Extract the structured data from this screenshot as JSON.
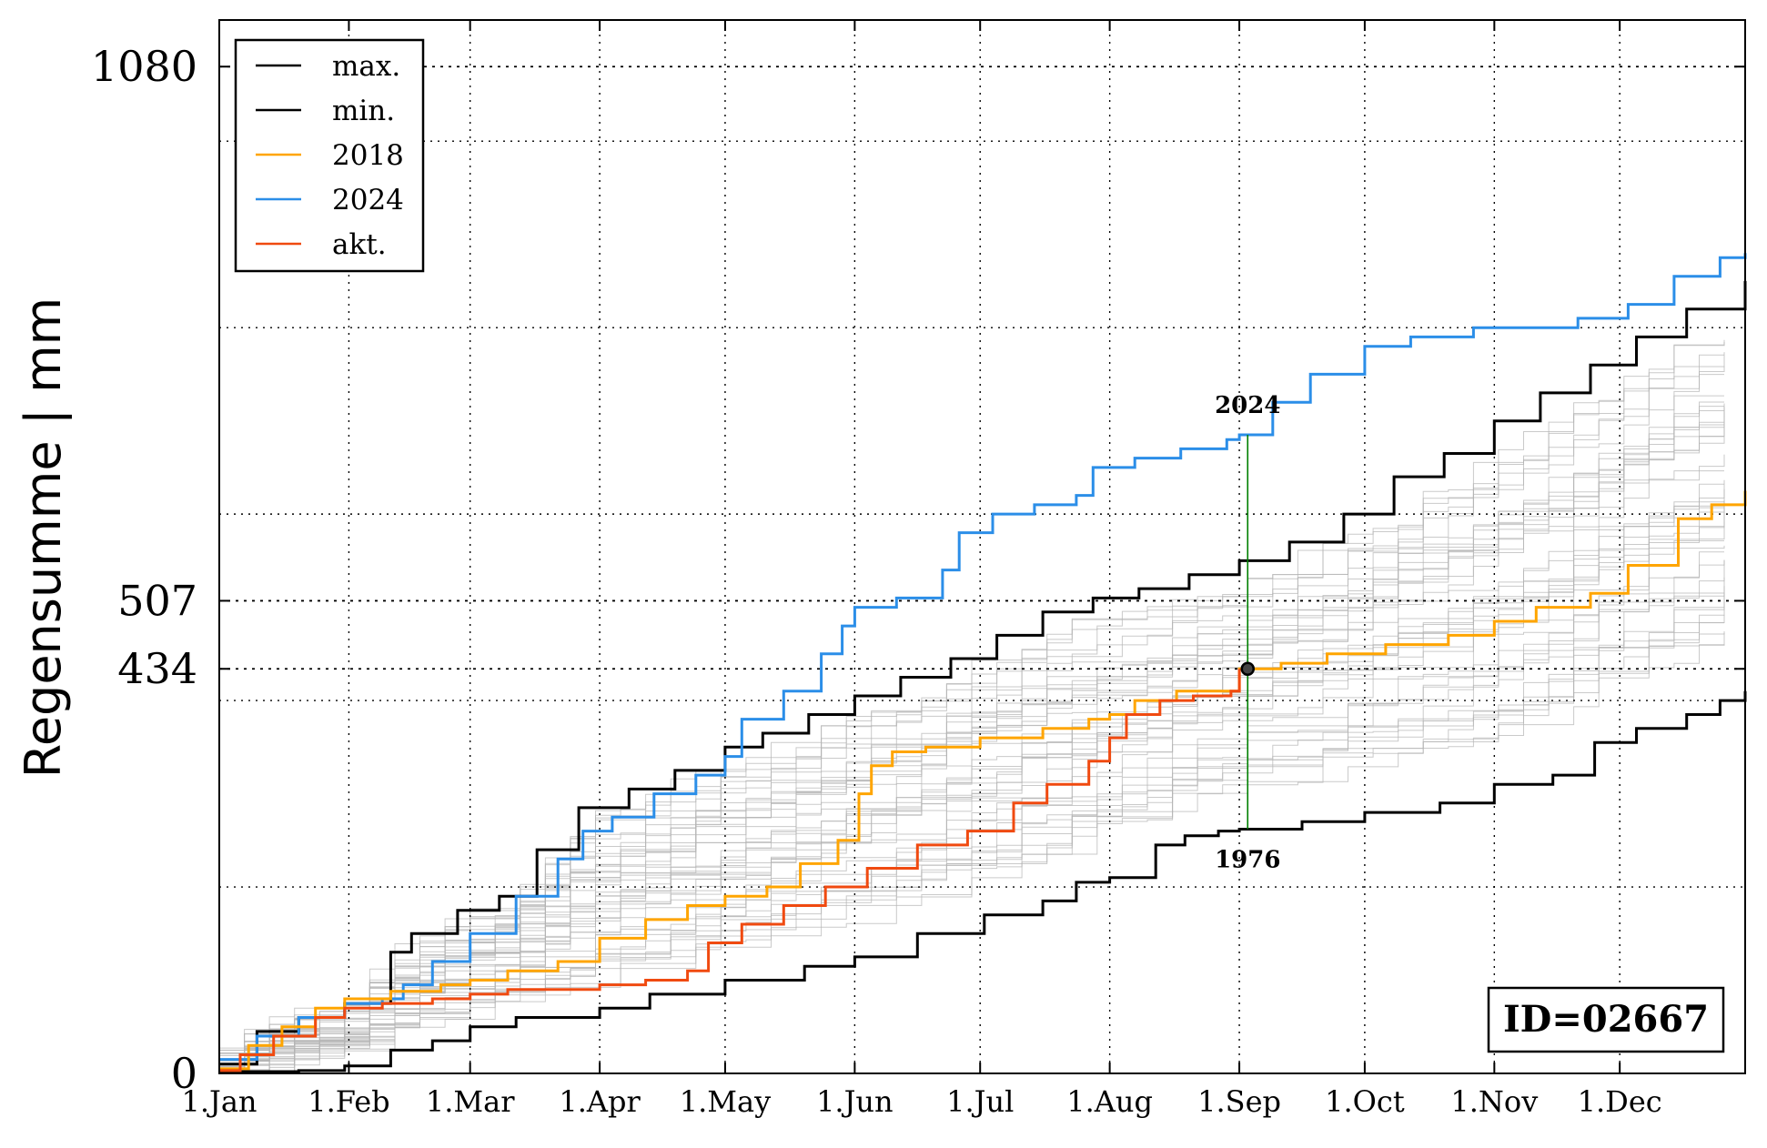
{
  "chart_data": {
    "type": "line",
    "ylabel": "Regensumme | mm",
    "xlabel": "",
    "x_unit": "day of year",
    "xlim": [
      1,
      366
    ],
    "ylim": [
      0,
      1130
    ],
    "x_ticks": [
      {
        "label": "1.Jan",
        "day": 1
      },
      {
        "label": "1.Feb",
        "day": 32
      },
      {
        "label": "1.Mar",
        "day": 61
      },
      {
        "label": "1.Apr",
        "day": 92
      },
      {
        "label": "1.May",
        "day": 122
      },
      {
        "label": "1.Jun",
        "day": 153
      },
      {
        "label": "1.Jul",
        "day": 183
      },
      {
        "label": "1.Aug",
        "day": 214
      },
      {
        "label": "1.Sep",
        "day": 245
      },
      {
        "label": "1.Oct",
        "day": 275
      },
      {
        "label": "1.Nov",
        "day": 306
      },
      {
        "label": "1.Dec",
        "day": 336
      }
    ],
    "y_ticks": [
      0,
      434,
      507,
      1080
    ],
    "reference_lines_y": [
      434,
      507,
      1080
    ],
    "grid": true,
    "legend_position": "top-left",
    "series": [
      {
        "name": "max.",
        "color": "#000000",
        "points": [
          [
            1,
            10
          ],
          [
            10,
            45
          ],
          [
            20,
            60
          ],
          [
            31,
            75
          ],
          [
            42,
            130
          ],
          [
            47,
            150
          ],
          [
            58,
            175
          ],
          [
            68,
            190
          ],
          [
            77,
            240
          ],
          [
            87,
            285
          ],
          [
            99,
            305
          ],
          [
            110,
            325
          ],
          [
            122,
            350
          ],
          [
            131,
            365
          ],
          [
            142,
            385
          ],
          [
            153,
            405
          ],
          [
            164,
            425
          ],
          [
            176,
            445
          ],
          [
            187,
            470
          ],
          [
            198,
            495
          ],
          [
            210,
            510
          ],
          [
            221,
            520
          ],
          [
            233,
            535
          ],
          [
            245,
            550
          ],
          [
            257,
            570
          ],
          [
            270,
            600
          ],
          [
            282,
            640
          ],
          [
            294,
            665
          ],
          [
            306,
            700
          ],
          [
            317,
            730
          ],
          [
            329,
            760
          ],
          [
            340,
            790
          ],
          [
            352,
            820
          ],
          [
            366,
            850
          ]
        ]
      },
      {
        "name": "min.",
        "color": "#000000",
        "points": [
          [
            1,
            2
          ],
          [
            20,
            3
          ],
          [
            31,
            8
          ],
          [
            42,
            25
          ],
          [
            52,
            35
          ],
          [
            61,
            50
          ],
          [
            72,
            60
          ],
          [
            92,
            70
          ],
          [
            104,
            85
          ],
          [
            122,
            100
          ],
          [
            141,
            115
          ],
          [
            153,
            125
          ],
          [
            168,
            150
          ],
          [
            184,
            170
          ],
          [
            198,
            185
          ],
          [
            206,
            205
          ],
          [
            214,
            210
          ],
          [
            225,
            245
          ],
          [
            232,
            255
          ],
          [
            240,
            260
          ],
          [
            245,
            262
          ],
          [
            260,
            270
          ],
          [
            275,
            280
          ],
          [
            293,
            290
          ],
          [
            306,
            310
          ],
          [
            320,
            320
          ],
          [
            330,
            355
          ],
          [
            340,
            370
          ],
          [
            352,
            385
          ],
          [
            360,
            400
          ],
          [
            366,
            410
          ]
        ]
      },
      {
        "name": "2018",
        "color": "#ffa500",
        "points": [
          [
            1,
            5
          ],
          [
            8,
            30
          ],
          [
            16,
            50
          ],
          [
            24,
            70
          ],
          [
            31,
            80
          ],
          [
            42,
            88
          ],
          [
            54,
            95
          ],
          [
            61,
            100
          ],
          [
            70,
            110
          ],
          [
            82,
            120
          ],
          [
            92,
            145
          ],
          [
            103,
            165
          ],
          [
            113,
            180
          ],
          [
            122,
            190
          ],
          [
            132,
            200
          ],
          [
            140,
            225
          ],
          [
            149,
            250
          ],
          [
            154,
            300
          ],
          [
            157,
            330
          ],
          [
            162,
            345
          ],
          [
            170,
            350
          ],
          [
            183,
            360
          ],
          [
            198,
            370
          ],
          [
            209,
            380
          ],
          [
            214,
            385
          ],
          [
            220,
            400
          ],
          [
            230,
            410
          ],
          [
            240,
            410
          ],
          [
            245,
            434
          ],
          [
            255,
            440
          ],
          [
            266,
            450
          ],
          [
            280,
            460
          ],
          [
            295,
            470
          ],
          [
            306,
            485
          ],
          [
            316,
            500
          ],
          [
            329,
            515
          ],
          [
            338,
            545
          ],
          [
            350,
            595
          ],
          [
            358,
            610
          ],
          [
            366,
            625
          ]
        ]
      },
      {
        "name": "2024",
        "color": "#2b8ee8",
        "points": [
          [
            1,
            15
          ],
          [
            10,
            40
          ],
          [
            20,
            60
          ],
          [
            31,
            75
          ],
          [
            40,
            80
          ],
          [
            45,
            95
          ],
          [
            52,
            120
          ],
          [
            61,
            150
          ],
          [
            72,
            190
          ],
          [
            82,
            230
          ],
          [
            88,
            260
          ],
          [
            95,
            275
          ],
          [
            105,
            300
          ],
          [
            115,
            320
          ],
          [
            122,
            340
          ],
          [
            126,
            380
          ],
          [
            136,
            410
          ],
          [
            145,
            450
          ],
          [
            150,
            480
          ],
          [
            153,
            500
          ],
          [
            163,
            510
          ],
          [
            174,
            540
          ],
          [
            178,
            580
          ],
          [
            186,
            600
          ],
          [
            196,
            610
          ],
          [
            206,
            620
          ],
          [
            210,
            650
          ],
          [
            220,
            660
          ],
          [
            231,
            670
          ],
          [
            242,
            680
          ],
          [
            245,
            685
          ],
          [
            253,
            720
          ],
          [
            262,
            750
          ],
          [
            275,
            780
          ],
          [
            286,
            790
          ],
          [
            301,
            800
          ],
          [
            314,
            800
          ],
          [
            326,
            810
          ],
          [
            338,
            825
          ],
          [
            349,
            855
          ],
          [
            360,
            875
          ],
          [
            366,
            880
          ]
        ]
      },
      {
        "name": "akt.",
        "color": "#f04a10",
        "points": [
          [
            1,
            3
          ],
          [
            6,
            20
          ],
          [
            14,
            40
          ],
          [
            24,
            60
          ],
          [
            31,
            70
          ],
          [
            40,
            75
          ],
          [
            52,
            80
          ],
          [
            61,
            85
          ],
          [
            70,
            90
          ],
          [
            92,
            95
          ],
          [
            103,
            100
          ],
          [
            113,
            110
          ],
          [
            118,
            140
          ],
          [
            126,
            160
          ],
          [
            136,
            180
          ],
          [
            146,
            200
          ],
          [
            156,
            220
          ],
          [
            168,
            245
          ],
          [
            180,
            260
          ],
          [
            191,
            290
          ],
          [
            199,
            310
          ],
          [
            209,
            335
          ],
          [
            214,
            360
          ],
          [
            218,
            385
          ],
          [
            226,
            400
          ],
          [
            234,
            405
          ],
          [
            243,
            410
          ],
          [
            245,
            434
          ]
        ]
      }
    ],
    "background_series": "thin grey cumulative curves for all other years",
    "background_color": "#b3b3b3",
    "current_point": {
      "day": 247,
      "value": 434
    },
    "vertical_marker": {
      "day": 247,
      "top_value": 685,
      "bottom_value": 262,
      "color": "#008000"
    },
    "marker_labels": {
      "top": "2024",
      "bottom": "1976"
    },
    "id_box": "ID=02667"
  }
}
